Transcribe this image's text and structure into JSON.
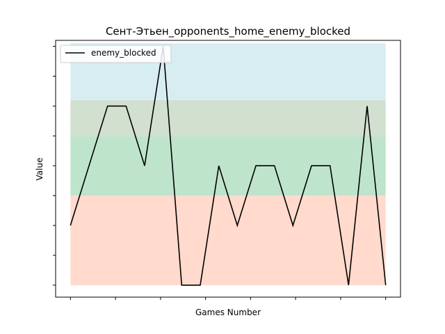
{
  "chart_data": {
    "type": "line",
    "title": "Сент-Этьен_opponents_home_enemy_blocked",
    "xlabel": "Games Number",
    "ylabel": "Value",
    "x": [
      0,
      1,
      2,
      3,
      4,
      5,
      6,
      7,
      8,
      9,
      10,
      11,
      12,
      13,
      14,
      15,
      16,
      17
    ],
    "series": [
      {
        "name": "enemy_blocked",
        "color": "#000000",
        "values": [
          2,
          4,
          6,
          6,
          4,
          8,
          0,
          0,
          4,
          2,
          4,
          4,
          2,
          4,
          4,
          0,
          6,
          0
        ]
      }
    ],
    "xlim": [
      -0.8,
      17.8
    ],
    "ylim": [
      -0.4,
      8.2
    ],
    "x_tick_count": 8,
    "y_tick_count": 9,
    "bands": [
      {
        "y0": 0,
        "y1": 3,
        "color": "#ffdacd"
      },
      {
        "y0": 3,
        "y1": 5,
        "color": "#bfe4cc"
      },
      {
        "y0": 5,
        "y1": 6.2,
        "color": "#d2e0d0"
      },
      {
        "y0": 6.2,
        "y1": 8.1,
        "color": "#d7edf2"
      }
    ],
    "legend": {
      "position": "top-left"
    },
    "grid": false
  }
}
